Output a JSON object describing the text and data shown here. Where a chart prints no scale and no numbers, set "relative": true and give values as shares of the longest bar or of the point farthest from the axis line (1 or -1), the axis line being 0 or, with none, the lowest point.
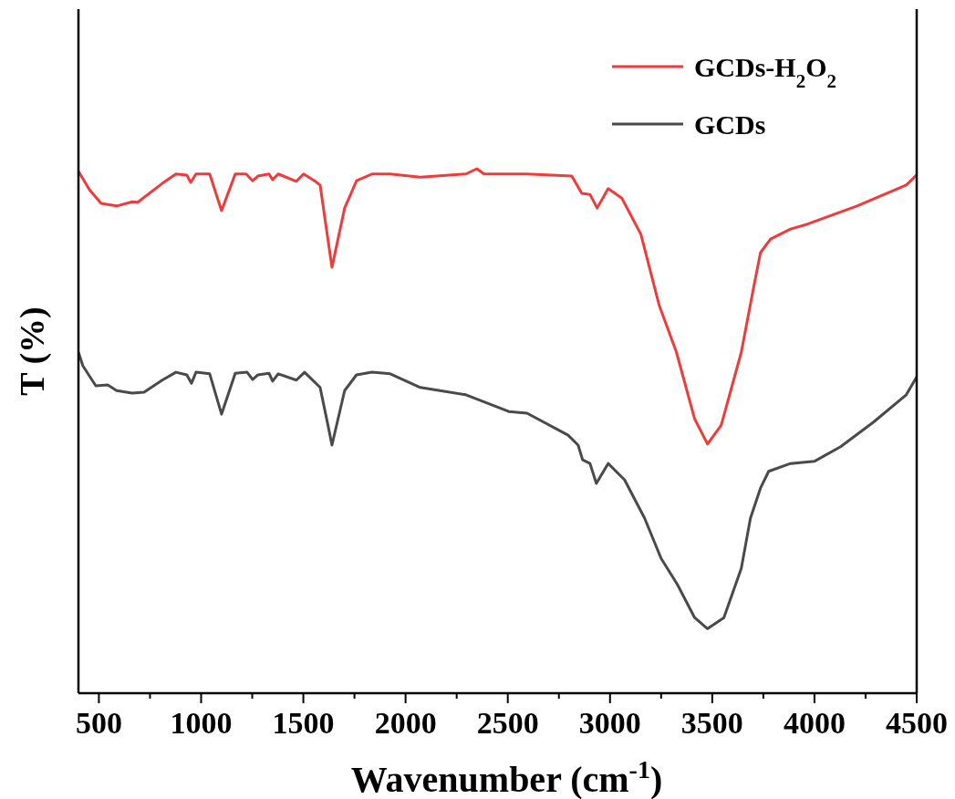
{
  "chart_data": {
    "type": "line",
    "relative": true,
    "xlabel": "Wavenumber (cm$^{-1}$)",
    "ylabel": "T (%)",
    "legend": "top right",
    "xlim": [
      400,
      4500
    ],
    "xticks": [
      500,
      {
        "value": 750,
        "label": null
      },
      1000,
      {
        "value": 1250,
        "label": null
      },
      1500,
      {
        "value": 1750,
        "label": null
      },
      2000,
      {
        "value": 2250,
        "label": null
      },
      2500,
      {
        "value": 2750,
        "label": null
      },
      3000,
      {
        "value": 3250,
        "label": null
      },
      3500,
      {
        "value": 3750,
        "label": null
      },
      4000,
      {
        "value": 4250,
        "label": null
      },
      4500
    ],
    "series": [
      {
        "name": "GCDs-H$_{2}$O$_{2}$",
        "color": "#ef3b3b",
        "x": [
          400,
          454,
          511,
          587,
          663,
          690,
          810,
          877,
          930,
          949,
          975,
          1042,
          1100,
          1167,
          1220,
          1252,
          1278,
          1332,
          1350,
          1377,
          1466,
          1501,
          1555,
          1582,
          1640,
          1702,
          1760,
          1836,
          1925,
          2072,
          2295,
          2349,
          2384,
          2505,
          2594,
          2813,
          2862,
          2902,
          2937,
          2991,
          3058,
          3151,
          3241,
          3325,
          3414,
          3477,
          3544,
          3642,
          3704,
          3736,
          3785,
          3883,
          3963,
          4208,
          4449,
          4500
        ],
        "values": [
          0.995,
          0.96,
          0.934,
          0.929,
          0.937,
          0.936,
          0.972,
          0.99,
          0.988,
          0.974,
          0.99,
          0.99,
          0.92,
          0.99,
          0.99,
          0.977,
          0.986,
          0.99,
          0.979,
          0.99,
          0.976,
          0.99,
          0.977,
          0.969,
          0.812,
          0.925,
          0.977,
          0.99,
          0.99,
          0.984,
          0.99,
          1.0,
          0.99,
          0.99,
          0.99,
          0.986,
          0.953,
          0.951,
          0.925,
          0.962,
          0.944,
          0.875,
          0.739,
          0.65,
          0.523,
          0.475,
          0.511,
          0.65,
          0.777,
          0.84,
          0.866,
          0.885,
          0.894,
          0.929,
          0.969,
          0.988
        ]
      },
      {
        "name": "GCDs",
        "color": "#4a4a4a",
        "x": [
          400,
          422,
          485,
          543,
          587,
          663,
          721,
          810,
          877,
          930,
          953,
          975,
          1042,
          1100,
          1167,
          1225,
          1252,
          1278,
          1332,
          1350,
          1377,
          1466,
          1506,
          1582,
          1622,
          1640,
          1702,
          1760,
          1836,
          1925,
          2072,
          2295,
          2505,
          2594,
          2795,
          2844,
          2866,
          2902,
          2933,
          2991,
          3071,
          3169,
          3250,
          3330,
          3414,
          3477,
          3557,
          3642,
          3687,
          3736,
          3776,
          3883,
          3999,
          4128,
          4289,
          4449,
          4500
        ],
        "values": [
          0.65,
          0.624,
          0.586,
          0.588,
          0.577,
          0.572,
          0.574,
          0.597,
          0.612,
          0.607,
          0.591,
          0.612,
          0.609,
          0.532,
          0.61,
          0.612,
          0.598,
          0.607,
          0.61,
          0.595,
          0.609,
          0.597,
          0.612,
          0.583,
          0.508,
          0.473,
          0.577,
          0.607,
          0.612,
          0.609,
          0.583,
          0.569,
          0.537,
          0.534,
          0.492,
          0.473,
          0.445,
          0.438,
          0.4,
          0.438,
          0.407,
          0.334,
          0.257,
          0.207,
          0.144,
          0.123,
          0.144,
          0.238,
          0.334,
          0.391,
          0.423,
          0.438,
          0.442,
          0.47,
          0.517,
          0.569,
          0.603
        ]
      }
    ]
  }
}
